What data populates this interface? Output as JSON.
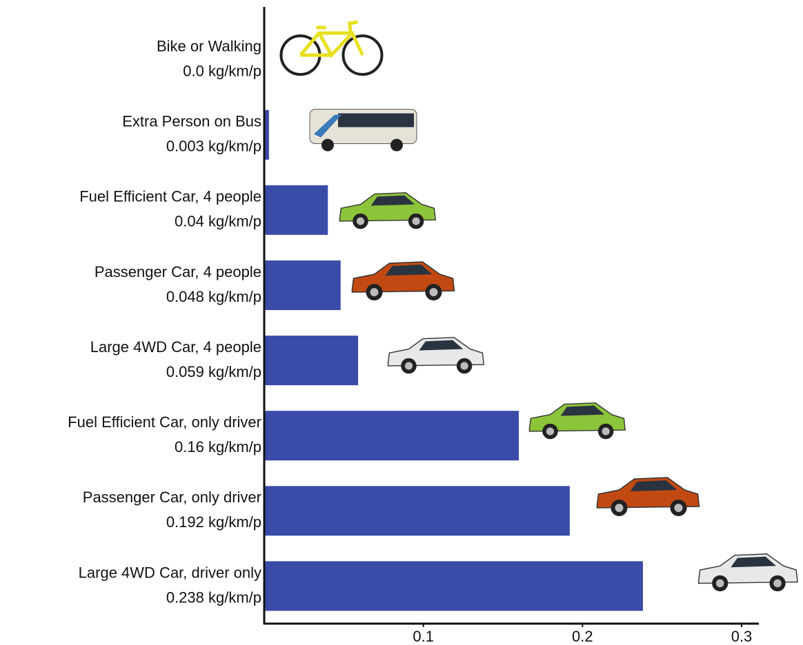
{
  "chart_data": {
    "type": "hbar",
    "categories": [
      "Bike or Walking",
      "Extra Person on Bus",
      "Fuel Efficient Car, 4 people",
      "Passenger Car, 4 people",
      "Large 4WD Car, 4 people",
      "Fuel Efficient Car, only driver",
      "Passenger Car, only driver",
      "Large 4WD Car, driver only"
    ],
    "values": [
      0.0,
      0.003,
      0.04,
      0.048,
      0.059,
      0.16,
      0.192,
      0.238
    ],
    "value_labels": [
      "0.0 kg/km/p",
      "0.003 kg/km/p",
      "0.04 kg/km/p",
      "0.048 kg/km/p",
      "0.059 kg/km/p",
      "0.16 kg/km/p",
      "0.192 kg/km/p",
      "0.238 kg/km/p"
    ],
    "color": "#3a4ba8",
    "xlim": [
      0,
      0.3
    ],
    "xticks": [
      0.1,
      0.2,
      0.3
    ]
  }
}
